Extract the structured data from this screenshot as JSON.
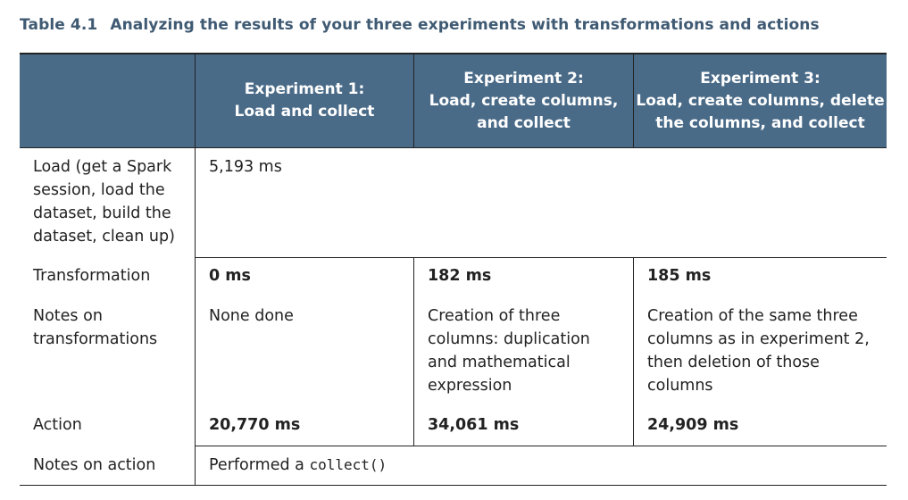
{
  "caption": {
    "number": "Table 4.1",
    "title": "Analyzing the results of your three experiments with transformations and actions"
  },
  "headers": [
    "",
    "Experiment 1:\nLoad and collect",
    "Experiment 2:\nLoad, create columns,\nand collect",
    "Experiment 3:\nLoad, create columns, delete\nthe columns, and collect"
  ],
  "rows": {
    "load": {
      "label": "Load (get a Spark\nsession, load the\ndataset, build the\ndataset, clean up)",
      "value": "5,193 ms"
    },
    "transformation": {
      "label": "Transformation",
      "values": [
        "0 ms",
        "182 ms",
        "185 ms"
      ]
    },
    "notes_transformations": {
      "label": "Notes on\ntransformations",
      "values": [
        "None done",
        "Creation of three\ncolumns: duplication\nand mathematical\nexpression",
        "Creation of the same three\ncolumns as in experiment 2,\nthen deletion of those\ncolumns"
      ]
    },
    "action": {
      "label": "Action",
      "values": [
        "20,770 ms",
        "34,061 ms",
        "24,909 ms"
      ]
    },
    "notes_action": {
      "label": "Notes on action",
      "text": "Performed a",
      "code": "collect()"
    }
  },
  "colors": {
    "header_bg": "#4a6b88",
    "caption_text": "#3f5a73"
  }
}
